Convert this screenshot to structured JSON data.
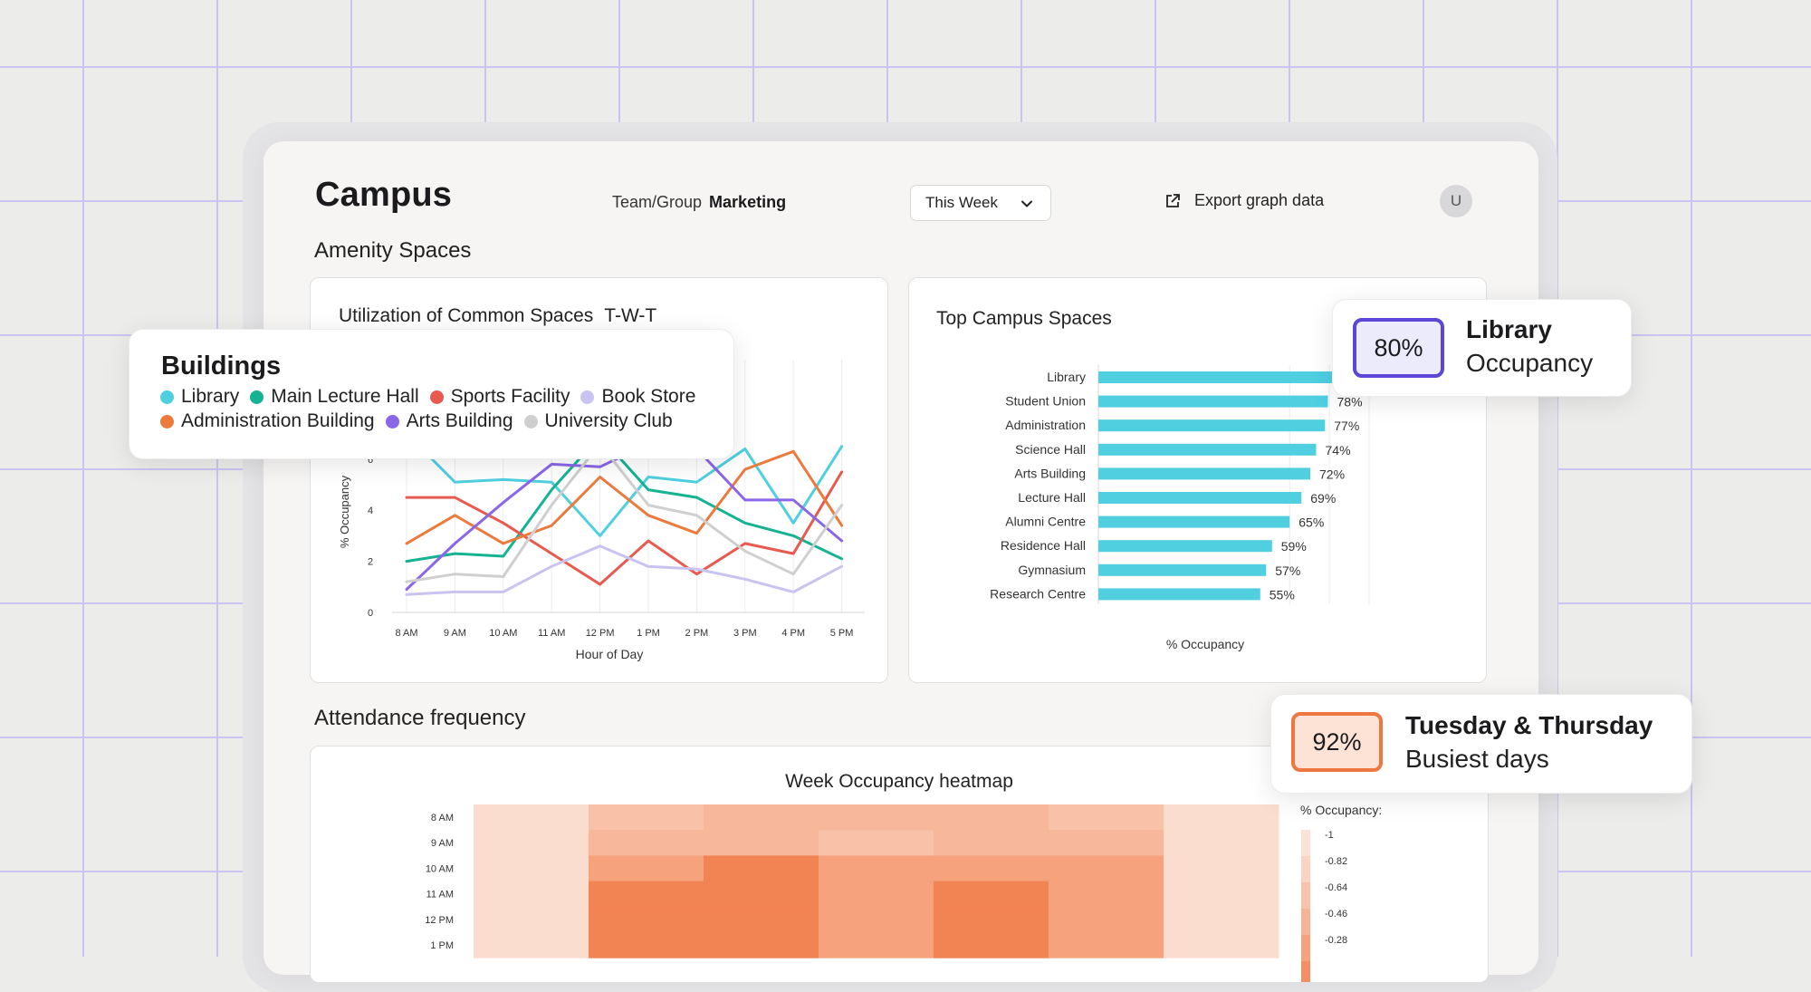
{
  "header": {
    "title": "Campus",
    "team_label": "Team/Group",
    "team_value": "Marketing",
    "period": "This Week",
    "export_label": "Export graph data",
    "avatar_initial": "U"
  },
  "sections": {
    "amenity": "Amenity Spaces",
    "attendance": "Attendance frequency"
  },
  "colors": {
    "accent_purple": "#5b46d6",
    "accent_orange": "#ee7640",
    "bar_cyan": "#4fcfe0"
  },
  "legend": {
    "heading": "Buildings",
    "row1": [
      {
        "label": "Library",
        "color": "#4fcfe0"
      },
      {
        "label": "Main Lecture Hall",
        "color": "#16b393"
      },
      {
        "label": "Sports Facility",
        "color": "#e85a4f"
      },
      {
        "label": "Book Store",
        "color": "#c9c3f1"
      }
    ],
    "row2": [
      {
        "label": "Administration Building",
        "color": "#ec7a3c"
      },
      {
        "label": "Arts Building",
        "color": "#8a66e8"
      },
      {
        "label": "University Club",
        "color": "#cfcfcf"
      }
    ]
  },
  "utilization": {
    "title": "Utilization of Common Spaces",
    "suffix": "T-W-T"
  },
  "top_spaces": {
    "title": "Top Campus Spaces"
  },
  "heatmap": {
    "title": "Week Occupancy heatmap",
    "legend_title": "% Occupancy:"
  },
  "library_card": {
    "pct": "80%",
    "title": "Library",
    "subtitle": "Occupancy"
  },
  "busiest_card": {
    "pct": "92%",
    "title": "Tuesday & Thursday",
    "subtitle": "Busiest days"
  },
  "chart_data": [
    {
      "type": "line",
      "title": "Utilization of Common Spaces T-W-T",
      "xlabel": "Hour of Day",
      "ylabel": "% Occupancy",
      "x": [
        "8 AM",
        "9 AM",
        "10 AM",
        "11 AM",
        "12 PM",
        "1 PM",
        "2 PM",
        "3 PM",
        "4 PM",
        "5 PM"
      ],
      "ylim": [
        0,
        8
      ],
      "yticks": [
        "0",
        "2",
        "4",
        "6"
      ],
      "grid": "vertical",
      "series": [
        {
          "name": "Library",
          "color": "#4fcfe0",
          "values": [
            7.0,
            5.1,
            5.2,
            5.1,
            3.0,
            5.3,
            5.1,
            6.4,
            3.5,
            6.5
          ]
        },
        {
          "name": "Main Lecture Hall",
          "color": "#16b393",
          "values": [
            2.0,
            2.3,
            2.2,
            4.8,
            6.9,
            4.8,
            4.5,
            3.5,
            3.0,
            2.1
          ]
        },
        {
          "name": "Sports Facility",
          "color": "#e85a4f",
          "values": [
            4.5,
            4.5,
            3.5,
            2.3,
            1.1,
            2.8,
            1.5,
            2.7,
            2.3,
            5.5
          ]
        },
        {
          "name": "Book Store",
          "color": "#c9c3f1",
          "values": [
            0.7,
            0.8,
            0.8,
            1.8,
            2.6,
            1.8,
            1.7,
            1.3,
            0.8,
            1.8
          ]
        },
        {
          "name": "Administration Building",
          "color": "#ec7a3c",
          "values": [
            2.7,
            3.8,
            2.7,
            3.4,
            5.3,
            3.8,
            3.1,
            5.6,
            6.3,
            3.4
          ]
        },
        {
          "name": "Arts Building",
          "color": "#8a66e8",
          "values": [
            0.9,
            2.7,
            4.3,
            5.8,
            5.7,
            6.6,
            6.4,
            4.4,
            4.4,
            2.8
          ]
        },
        {
          "name": "University Club",
          "color": "#cfcfcf",
          "values": [
            1.2,
            1.5,
            1.4,
            4.2,
            6.6,
            4.2,
            3.8,
            2.4,
            1.5,
            4.2
          ]
        }
      ]
    },
    {
      "type": "bar",
      "orientation": "horizontal",
      "title": "Top Campus Spaces",
      "xlabel": "% Occupancy",
      "categories": [
        "Library",
        "Student Union",
        "Administration",
        "Science Hall",
        "Arts Building",
        "Lecture Hall",
        "Alumni Centre",
        "Residence Hall",
        "Gymnasium",
        "Research Centre"
      ],
      "values": [
        80,
        78,
        77,
        74,
        72,
        69,
        65,
        59,
        57,
        55
      ],
      "labels": [
        "",
        "78%",
        "77%",
        "74%",
        "72%",
        "69%",
        "65%",
        "59%",
        "57%",
        "55%"
      ],
      "xlim": [
        0,
        100
      ],
      "color": "#4fcfe0"
    },
    {
      "type": "heatmap",
      "title": "Week Occupancy heatmap",
      "rows": [
        "8 AM",
        "9 AM",
        "10 AM",
        "11 AM",
        "12 PM",
        "1 PM"
      ],
      "columns": 7,
      "values": [
        [
          0.12,
          0.35,
          0.43,
          0.43,
          0.43,
          0.35,
          0.12
        ],
        [
          0.12,
          0.43,
          0.43,
          0.35,
          0.43,
          0.43,
          0.12
        ],
        [
          0.12,
          0.6,
          0.85,
          0.6,
          0.6,
          0.6,
          0.12
        ],
        [
          0.12,
          0.85,
          0.85,
          0.6,
          0.85,
          0.6,
          0.12
        ],
        [
          0.12,
          0.85,
          0.85,
          0.6,
          0.85,
          0.6,
          0.12
        ],
        [
          0.12,
          0.85,
          0.85,
          0.6,
          0.85,
          0.6,
          0.12
        ]
      ],
      "legend_ticks": [
        "-1",
        "-0.82",
        "-0.64",
        "-0.46",
        "-0.28"
      ]
    }
  ]
}
